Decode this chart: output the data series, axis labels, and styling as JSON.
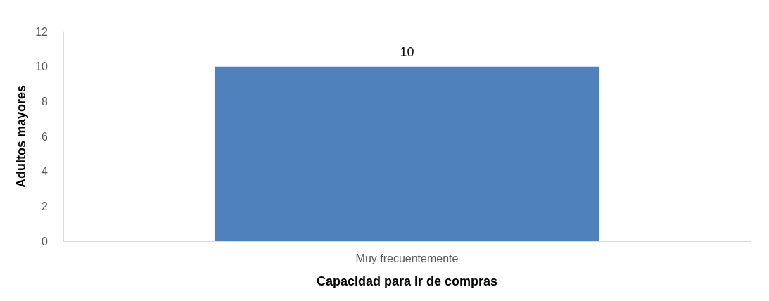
{
  "chart_data": {
    "type": "bar",
    "xlabel": "Capacidad para ir de compras",
    "ylabel": "Adultos mayores",
    "categories": [
      "Muy frecuentemente"
    ],
    "values": [
      10
    ],
    "color": "#4f81bd",
    "ylim": [
      0,
      12
    ],
    "yticks": [
      0,
      2,
      4,
      6,
      8,
      10,
      12
    ],
    "grid": false,
    "data_labels": true
  }
}
